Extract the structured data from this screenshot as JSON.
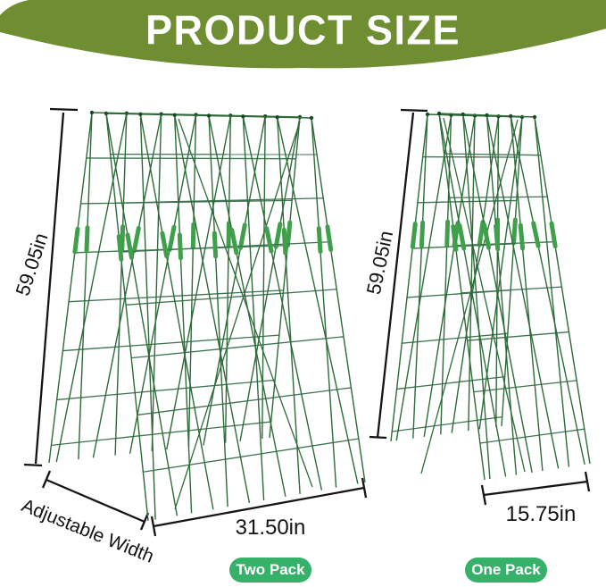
{
  "banner": {
    "title": "PRODUCT SIZE",
    "bg_color": "#6e8e31",
    "text_color": "#ffffff"
  },
  "left_trellis": {
    "height_label": "59.05in",
    "width_label": "31.50in",
    "depth_label": "Adjustable Width",
    "badge_label": "Two Pack"
  },
  "right_trellis": {
    "height_label": "59.05in",
    "width_label": "15.75in",
    "badge_label": "One Pack"
  },
  "colors": {
    "wire": "#2e6b39",
    "wire_row": "#3e7351",
    "joint": "#1b4a26",
    "clip": "#3f9f4b",
    "dimension_line": "#151515",
    "label_text": "#141414",
    "badge_bg": "#35b169",
    "badge_text": "#ffffff",
    "background": "#ffffff"
  }
}
